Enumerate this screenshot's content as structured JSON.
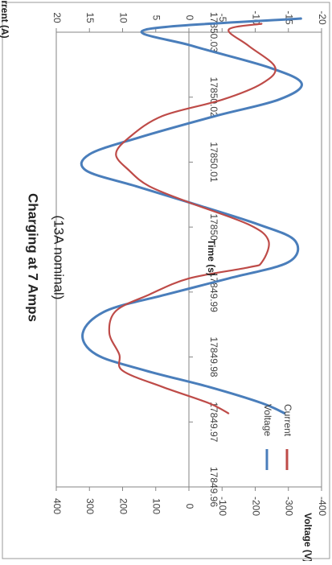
{
  "chart_data": {
    "type": "line",
    "title": "Charging at 7 Amps",
    "subtitle": "(13A nominal)",
    "xlabel": "Time (s)",
    "ylabel": "Voltage (V)",
    "y2label": "Current (A)",
    "xlim": [
      17849.96,
      17850.03
    ],
    "ylim": [
      -400,
      400
    ],
    "y2lim": [
      -20,
      20
    ],
    "x_ticks": [
      "17849.96",
      "17849.97",
      "17849.98",
      "17849.99",
      "17850",
      "17850.01",
      "17850.02",
      "17850.03"
    ],
    "y_ticks": [
      "400",
      "300",
      "200",
      "100",
      "0",
      "-100",
      "-200",
      "-300",
      "-400"
    ],
    "y2_ticks": [
      "20",
      "15",
      "10",
      "5",
      "0",
      "-5",
      "-10",
      "-15",
      "-20"
    ],
    "legend_position": "lower-left",
    "series": [
      {
        "name": "Voltage",
        "axis": "left",
        "color": "#4a7ebb",
        "x": [
          17849.9713,
          17849.9729,
          17849.9754,
          17849.9779,
          17849.9804,
          17849.9837,
          17849.9871,
          17849.9896,
          17849.9921,
          17849.9946,
          17849.9979,
          17850.0004,
          17850.0038,
          17850.0063,
          17850.0087,
          17850.0112,
          17850.0138,
          17850.0171,
          17850.0196,
          17850.0221,
          17850.0246,
          17850.0279,
          17850.0304,
          17850.0321
        ],
        "y": [
          -290,
          -220,
          -60,
          130,
          280,
          320,
          250,
          70,
          -120,
          -300,
          -320,
          -210,
          0,
          160,
          310,
          300,
          150,
          -80,
          -270,
          -340,
          -240,
          -10,
          130,
          -340
        ]
      },
      {
        "name": "Current",
        "axis": "right",
        "color": "#be4b48",
        "x": [
          17849.9713,
          17849.9729,
          17849.9754,
          17849.9779,
          17849.9804,
          17849.9837,
          17849.9871,
          17849.9896,
          17849.9921,
          17849.9938,
          17849.9946,
          17849.9979,
          17850.0004,
          17850.0038,
          17850.0063,
          17850.0087,
          17850.0112,
          17850.0138,
          17850.0171,
          17850.0196,
          17850.0221,
          17850.0246,
          17850.0279,
          17850.0304,
          17850.0313
        ],
        "y": [
          -6,
          -3,
          4,
          10,
          10.5,
          12,
          11,
          6,
          0,
          -9,
          -11,
          -12,
          -9,
          0,
          6,
          9,
          11,
          9,
          4,
          -5,
          -11,
          -13,
          -9,
          -6,
          -11
        ]
      }
    ]
  }
}
